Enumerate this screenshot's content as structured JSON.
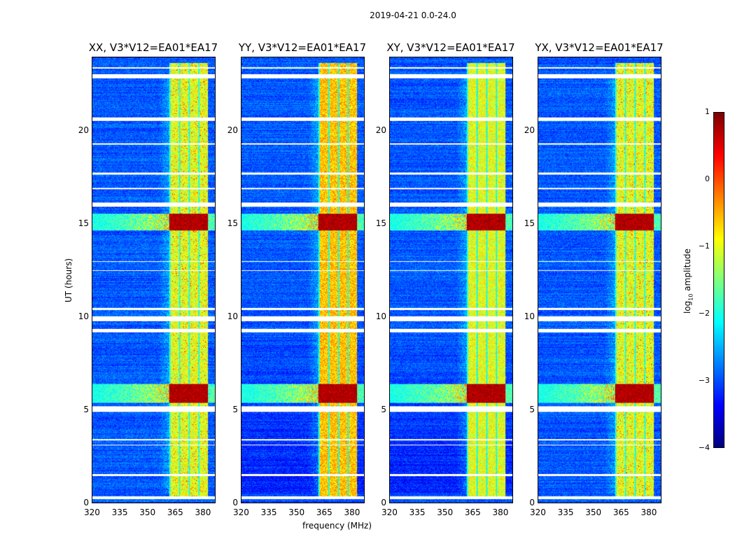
{
  "chart_data": {
    "type": "heatmap",
    "title": "2019-04-21 0.0-24.0",
    "xlabel": "frequency (MHz)",
    "ylabel": "UT (hours)",
    "xlim": [
      320,
      387
    ],
    "ylim": [
      0,
      24
    ],
    "xticks": [
      "320",
      "335",
      "350",
      "365",
      "380"
    ],
    "yticks": [
      "0",
      "5",
      "10",
      "15",
      "20"
    ],
    "colormap": "jet",
    "colorbar": {
      "label": "log10 amplitude",
      "label_main": "log",
      "label_sub": "10",
      "label_rest": " amplitude",
      "range": [
        -4,
        1
      ],
      "ticks": [
        "1",
        "0",
        "−1",
        "−2",
        "−3",
        "−4"
      ]
    },
    "panels": [
      {
        "title": "XX, V3*V12=EA01*EA17"
      },
      {
        "title": "YY, V3*V12=EA01*EA17"
      },
      {
        "title": "XY, V3*V12=EA01*EA17"
      },
      {
        "title": "YX, V3*V12=EA01*EA17"
      }
    ],
    "signal_band_mhz": [
      362,
      383
    ],
    "strong_rfi_hours": [
      [
        5.4,
        6.4
      ],
      [
        14.7,
        15.6
      ]
    ],
    "flagged_hours": [
      [
        0.2,
        0.35
      ],
      [
        1.45,
        1.55
      ],
      [
        3.1,
        3.15
      ],
      [
        3.35,
        3.45
      ],
      [
        4.9,
        5.2
      ],
      [
        9.2,
        9.4
      ],
      [
        9.8,
        10.05
      ],
      [
        10.4,
        10.5
      ],
      [
        12.5,
        12.55
      ],
      [
        13.0,
        13.05
      ],
      [
        15.95,
        16.2
      ],
      [
        16.9,
        17.0
      ],
      [
        17.7,
        17.8
      ],
      [
        19.3,
        19.4
      ],
      [
        20.6,
        20.8
      ],
      [
        22.9,
        23.1
      ],
      [
        23.4,
        23.5
      ]
    ]
  }
}
